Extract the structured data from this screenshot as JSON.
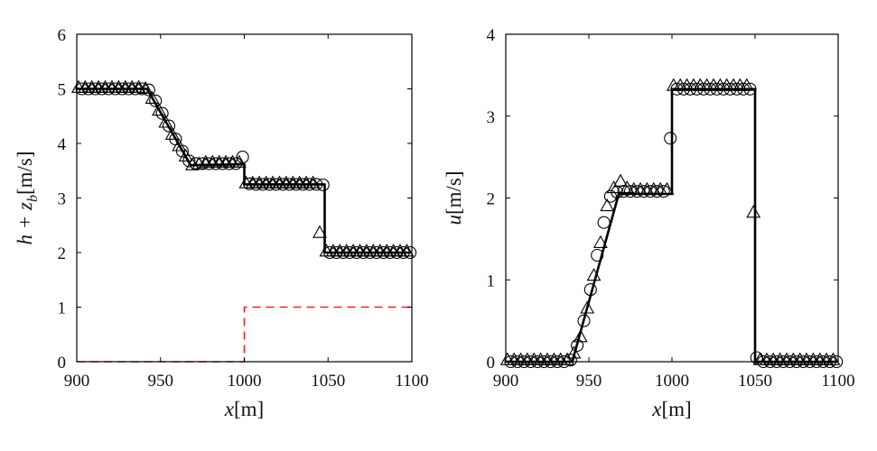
{
  "chart_data": [
    {
      "type": "line",
      "xlabel_var": "x",
      "xlabel_unit": "[m]",
      "ylabel_var": "h + z",
      "ylabel_sub": "b",
      "ylabel_unit": "[m/s]",
      "xlim": [
        900,
        1100
      ],
      "ylim": [
        0,
        6
      ],
      "xticks": [
        900,
        950,
        1000,
        1050,
        1100
      ],
      "yticks": [
        0,
        1,
        2,
        3,
        4,
        5,
        6
      ],
      "series": [
        {
          "name": "solution",
          "style": "solid-black",
          "x": [
            900,
            942,
            968,
            1000,
            1000,
            1048,
            1048,
            1100
          ],
          "y": [
            5.0,
            5.0,
            3.6,
            3.62,
            3.25,
            3.25,
            2.0,
            2.0
          ]
        },
        {
          "name": "bed z_b",
          "style": "dashed-red",
          "x": [
            900,
            1000,
            1000,
            1100
          ],
          "y": [
            0,
            0,
            1,
            1
          ]
        },
        {
          "name": "circles",
          "style": "circle",
          "x": [
            903,
            907,
            911,
            915,
            919,
            923,
            927,
            931,
            935,
            939,
            943,
            947,
            951,
            955,
            959,
            963,
            967,
            971,
            975,
            979,
            983,
            987,
            991,
            995,
            999,
            1003,
            1007,
            1011,
            1015,
            1019,
            1023,
            1027,
            1031,
            1035,
            1039,
            1043,
            1047,
            1051,
            1055,
            1059,
            1063,
            1067,
            1071,
            1075,
            1079,
            1083,
            1087,
            1091,
            1095,
            1099
          ],
          "y": [
            5.0,
            5.0,
            5.0,
            5.0,
            5.0,
            5.0,
            5.0,
            5.0,
            5.0,
            5.0,
            4.98,
            4.78,
            4.55,
            4.32,
            4.08,
            3.86,
            3.68,
            3.63,
            3.63,
            3.63,
            3.63,
            3.63,
            3.63,
            3.63,
            3.75,
            3.26,
            3.25,
            3.25,
            3.25,
            3.25,
            3.25,
            3.25,
            3.25,
            3.25,
            3.25,
            3.25,
            3.24,
            2.0,
            2.0,
            2.0,
            2.0,
            2.0,
            2.0,
            2.0,
            2.0,
            2.0,
            2.0,
            2.0,
            2.0,
            2.0
          ]
        },
        {
          "name": "triangles",
          "style": "triangle",
          "x": [
            901,
            905,
            909,
            913,
            917,
            921,
            925,
            929,
            933,
            937,
            941,
            945,
            949,
            953,
            957,
            961,
            965,
            969,
            973,
            977,
            981,
            985,
            989,
            993,
            997,
            1001,
            1005,
            1009,
            1013,
            1017,
            1021,
            1025,
            1029,
            1033,
            1037,
            1041,
            1045,
            1049,
            1053,
            1057,
            1061,
            1065,
            1069,
            1073,
            1077,
            1081,
            1085,
            1089,
            1093,
            1097
          ],
          "y": [
            5.02,
            5.02,
            5.02,
            5.02,
            5.02,
            5.02,
            5.02,
            5.02,
            5.02,
            5.02,
            5.0,
            4.82,
            4.6,
            4.38,
            4.16,
            3.95,
            3.76,
            3.6,
            3.62,
            3.65,
            3.65,
            3.65,
            3.65,
            3.65,
            3.65,
            3.27,
            3.27,
            3.27,
            3.27,
            3.27,
            3.27,
            3.27,
            3.27,
            3.27,
            3.27,
            3.27,
            2.36,
            2.02,
            2.02,
            2.02,
            2.02,
            2.02,
            2.02,
            2.02,
            2.02,
            2.02,
            2.02,
            2.02,
            2.02,
            2.02
          ]
        }
      ]
    },
    {
      "type": "line",
      "xlabel_var": "x",
      "xlabel_unit": "[m]",
      "ylabel_var": "u",
      "ylabel_sub": "",
      "ylabel_unit": "[m/s]",
      "xlim": [
        900,
        1100
      ],
      "ylim": [
        0,
        4
      ],
      "xticks": [
        900,
        950,
        1000,
        1050,
        1100
      ],
      "yticks": [
        0,
        1,
        2,
        3,
        4
      ],
      "series": [
        {
          "name": "solution",
          "style": "solid-black",
          "x": [
            900,
            940,
            968,
            1000,
            1000,
            1050,
            1050,
            1100
          ],
          "y": [
            0,
            0,
            2.05,
            2.05,
            3.33,
            3.33,
            0,
            0
          ]
        },
        {
          "name": "circles",
          "style": "circle",
          "x": [
            903,
            907,
            911,
            915,
            919,
            923,
            927,
            931,
            935,
            939,
            943,
            947,
            951,
            955,
            959,
            963,
            967,
            971,
            975,
            979,
            983,
            987,
            991,
            995,
            999,
            1003,
            1007,
            1011,
            1015,
            1019,
            1023,
            1027,
            1031,
            1035,
            1039,
            1043,
            1047,
            1051,
            1055,
            1059,
            1063,
            1067,
            1071,
            1075,
            1079,
            1083,
            1087,
            1091,
            1095,
            1099
          ],
          "y": [
            0,
            0,
            0,
            0,
            0,
            0,
            0,
            0,
            0,
            0.02,
            0.2,
            0.5,
            0.88,
            1.3,
            1.7,
            2.02,
            2.07,
            2.08,
            2.08,
            2.08,
            2.08,
            2.08,
            2.08,
            2.08,
            2.73,
            3.33,
            3.33,
            3.33,
            3.33,
            3.33,
            3.33,
            3.33,
            3.33,
            3.33,
            3.33,
            3.33,
            3.33,
            0.05,
            0,
            0,
            0,
            0,
            0,
            0,
            0,
            0,
            0,
            0,
            0,
            0
          ]
        },
        {
          "name": "triangles",
          "style": "triangle",
          "x": [
            901,
            905,
            909,
            913,
            917,
            921,
            925,
            929,
            933,
            937,
            941,
            945,
            949,
            953,
            957,
            961,
            965,
            969,
            973,
            977,
            981,
            985,
            989,
            993,
            997,
            1001,
            1005,
            1009,
            1013,
            1017,
            1021,
            1025,
            1029,
            1033,
            1037,
            1041,
            1045,
            1049,
            1053,
            1057,
            1061,
            1065,
            1069,
            1073,
            1077,
            1081,
            1085,
            1089,
            1093,
            1097
          ],
          "y": [
            0.02,
            0.02,
            0.02,
            0.02,
            0.02,
            0.02,
            0.02,
            0.02,
            0.02,
            0.02,
            0.1,
            0.3,
            0.65,
            1.05,
            1.45,
            1.9,
            2.12,
            2.2,
            2.12,
            2.1,
            2.1,
            2.1,
            2.1,
            2.1,
            2.1,
            3.37,
            3.37,
            3.37,
            3.37,
            3.37,
            3.37,
            3.37,
            3.37,
            3.37,
            3.37,
            3.37,
            3.37,
            1.82,
            0.02,
            0.02,
            0.02,
            0.02,
            0.02,
            0.02,
            0.02,
            0.02,
            0.02,
            0.02,
            0.02,
            0.02
          ]
        }
      ]
    }
  ]
}
